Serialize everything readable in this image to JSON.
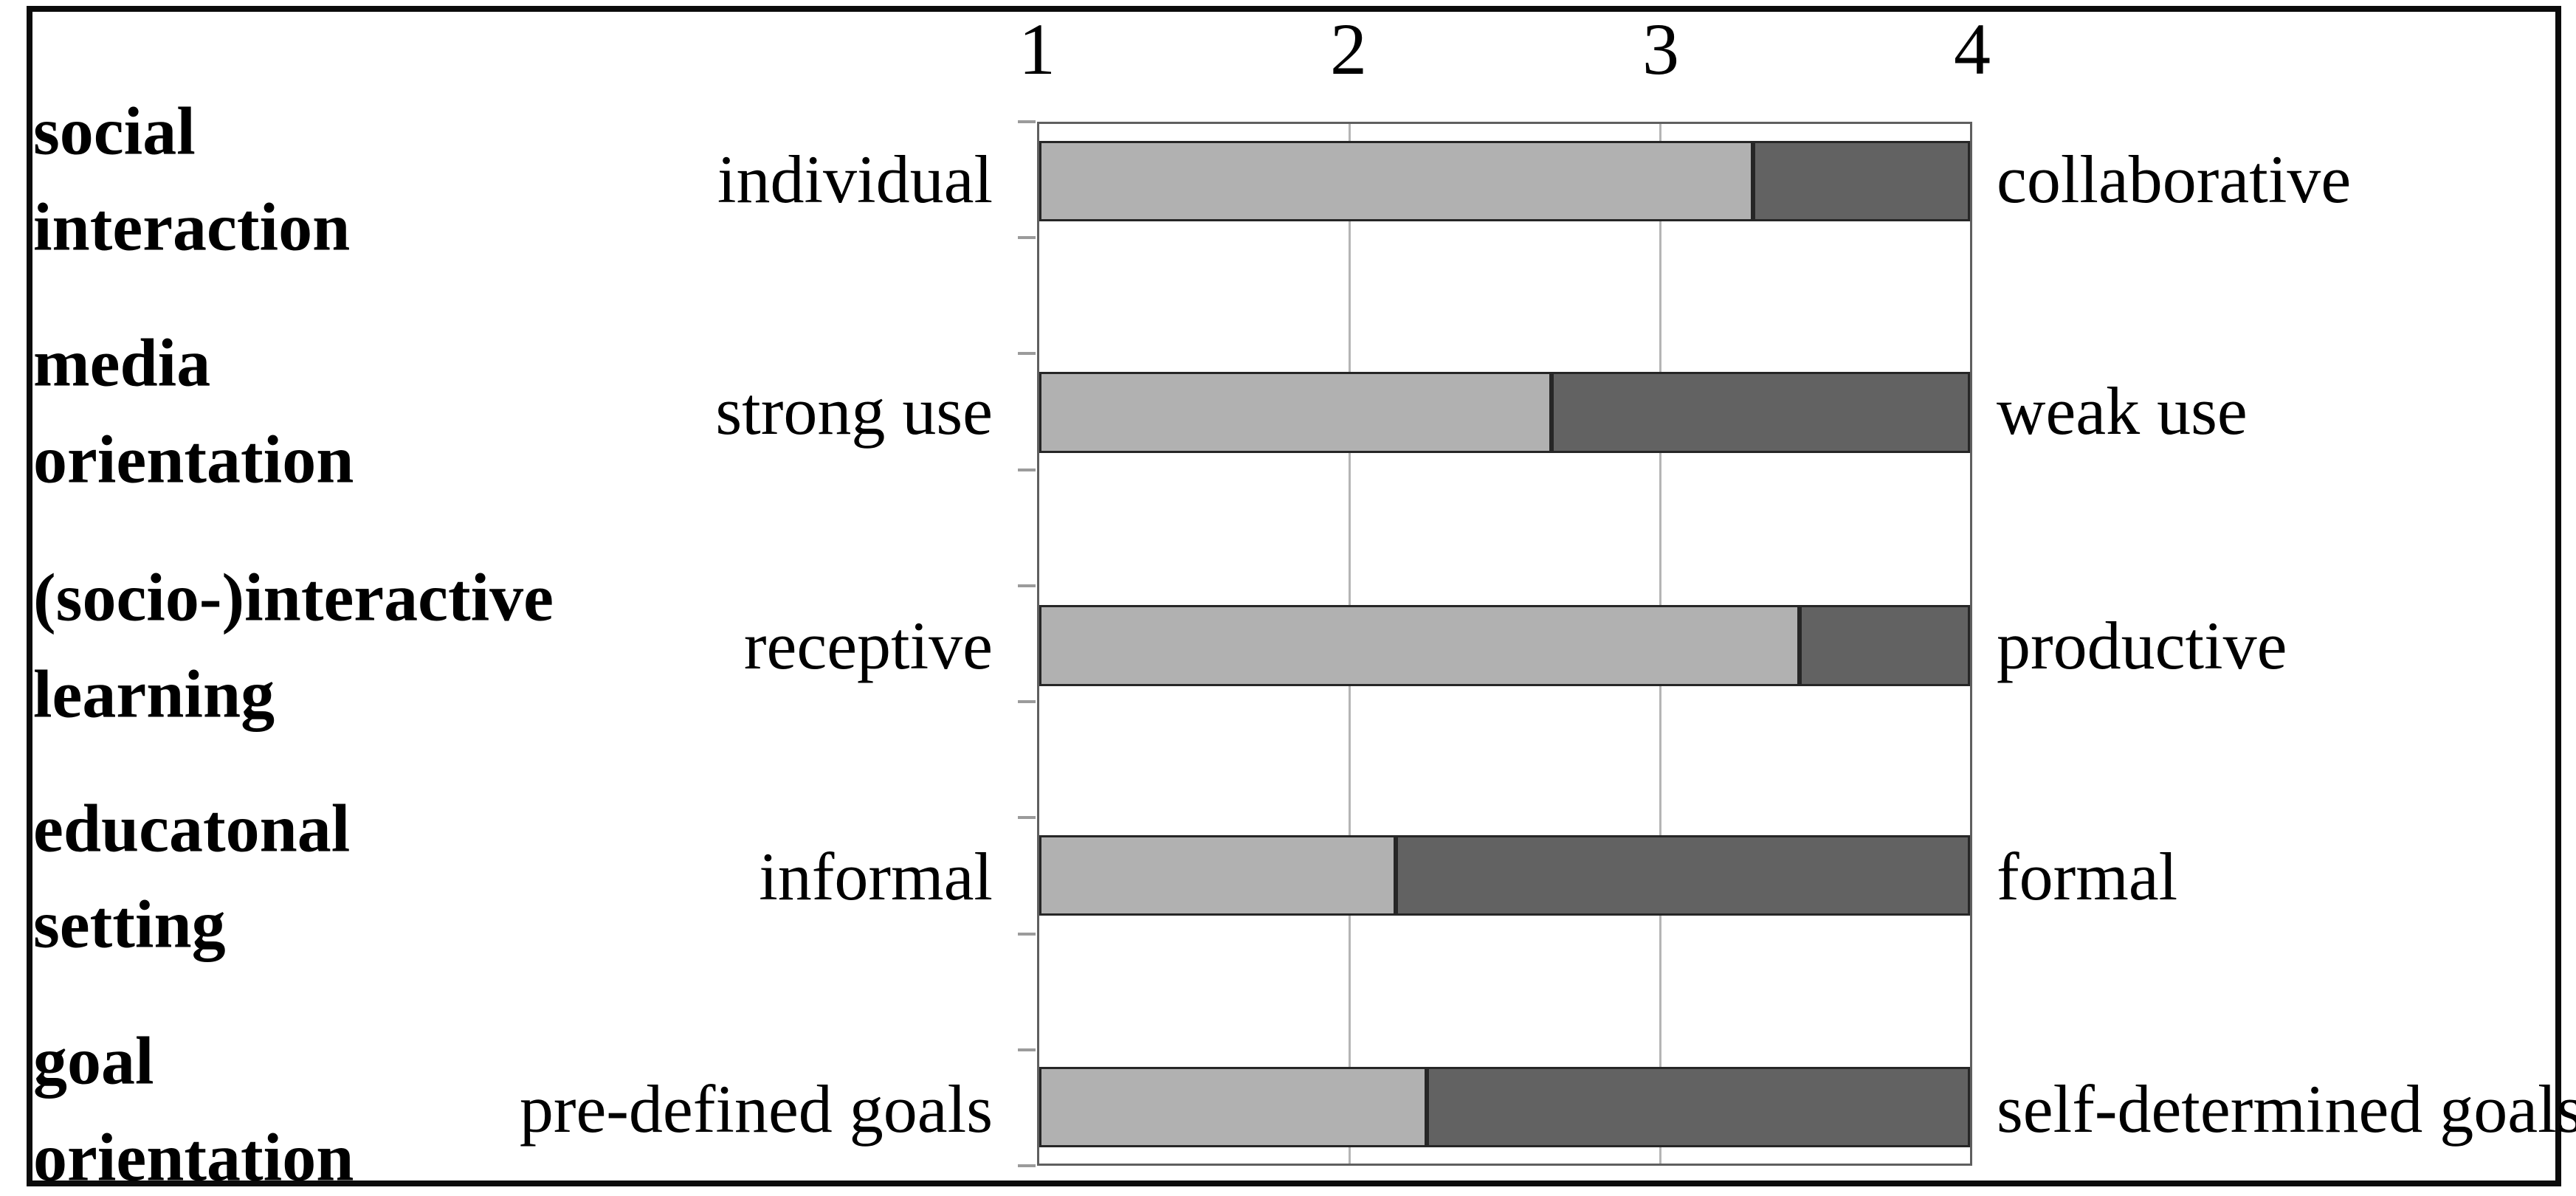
{
  "chart_data": {
    "type": "bar",
    "variant": "horizontal-stacked-semantic-differential",
    "title": "",
    "x_ticks": [
      "1",
      "2",
      "3",
      "4"
    ],
    "xlim": [
      1,
      4
    ],
    "gridlines_at": [
      2,
      3
    ],
    "legend_position": "none",
    "axis_position": "top",
    "colors": {
      "left_segment": "#b1b1b1",
      "right_segment": "#626262",
      "bar_border": "#262626",
      "plot_border": "#5f5f5f",
      "gridline": "#b5b5b5",
      "axis_tick": "#9b9b9b",
      "outer_frame": "#0b0b0b",
      "text": "#000000"
    },
    "rows": [
      {
        "dimension": "social\ninteraction",
        "left_pole": "individual",
        "right_pole": "collaborative",
        "value": 3.3
      },
      {
        "dimension": "media\norientation",
        "left_pole": "strong use",
        "right_pole": "weak use",
        "value": 2.65
      },
      {
        "dimension": "(socio-)interactive\nlearning",
        "left_pole": "receptive",
        "right_pole": "productive",
        "value": 3.45
      },
      {
        "dimension": "educatonal\nsetting",
        "left_pole": "informal",
        "right_pole": "formal",
        "value": 2.15
      },
      {
        "dimension": "goal\norientation",
        "left_pole": "pre-defined goals",
        "right_pole": "self-determined goals",
        "value": 2.25
      }
    ]
  }
}
